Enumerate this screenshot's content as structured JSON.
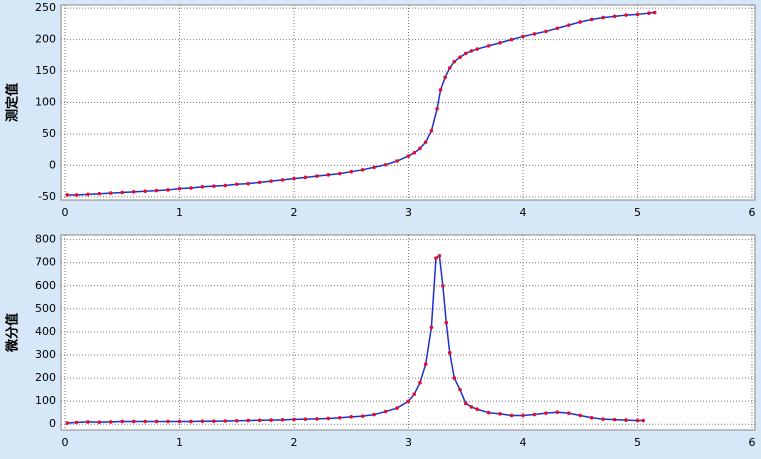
{
  "chart_data": [
    {
      "type": "line",
      "ylabel": "测定值",
      "color": "#1f2fd0",
      "marker_color": "#e0102a",
      "grid": true,
      "xlim": [
        0,
        6
      ],
      "xticks": [
        0,
        1,
        2,
        3,
        4,
        5,
        6
      ],
      "ylim": [
        -55,
        255
      ],
      "yticks": [
        -50,
        0,
        50,
        100,
        150,
        200,
        250
      ],
      "x": [
        0.02,
        0.1,
        0.2,
        0.3,
        0.4,
        0.5,
        0.6,
        0.7,
        0.8,
        0.9,
        1.0,
        1.1,
        1.2,
        1.3,
        1.4,
        1.5,
        1.6,
        1.7,
        1.8,
        1.9,
        2.0,
        2.1,
        2.2,
        2.3,
        2.4,
        2.5,
        2.6,
        2.7,
        2.8,
        2.9,
        3.0,
        3.05,
        3.1,
        3.15,
        3.2,
        3.25,
        3.28,
        3.32,
        3.36,
        3.4,
        3.45,
        3.5,
        3.55,
        3.6,
        3.7,
        3.8,
        3.9,
        4.0,
        4.1,
        4.2,
        4.3,
        4.4,
        4.5,
        4.6,
        4.7,
        4.8,
        4.9,
        5.0,
        5.1,
        5.15
      ],
      "values": [
        -47,
        -47,
        -46,
        -45,
        -44,
        -43,
        -42,
        -41,
        -40,
        -39,
        -37,
        -36,
        -34,
        -33,
        -32,
        -30,
        -29,
        -27,
        -25,
        -23,
        -21,
        -19,
        -17,
        -15,
        -13,
        -10,
        -7,
        -3,
        1,
        7,
        15,
        20,
        27,
        37,
        55,
        90,
        120,
        140,
        155,
        165,
        172,
        178,
        182,
        185,
        190,
        195,
        200,
        205,
        209,
        213,
        218,
        223,
        228,
        232,
        235,
        237,
        239,
        240,
        242,
        243
      ]
    },
    {
      "type": "line",
      "ylabel": "微分值",
      "color": "#1f2fd0",
      "marker_color": "#e0102a",
      "grid": true,
      "xlim": [
        0,
        6
      ],
      "xticks": [
        0,
        1,
        2,
        3,
        4,
        5,
        6
      ],
      "ylim": [
        -25,
        820
      ],
      "yticks": [
        0,
        100,
        200,
        300,
        400,
        500,
        600,
        700,
        800
      ],
      "x": [
        0.02,
        0.1,
        0.2,
        0.3,
        0.4,
        0.5,
        0.6,
        0.7,
        0.8,
        0.9,
        1.0,
        1.1,
        1.2,
        1.3,
        1.4,
        1.5,
        1.6,
        1.7,
        1.8,
        1.9,
        2.0,
        2.1,
        2.2,
        2.3,
        2.4,
        2.5,
        2.6,
        2.7,
        2.8,
        2.9,
        3.0,
        3.05,
        3.1,
        3.15,
        3.2,
        3.24,
        3.27,
        3.3,
        3.33,
        3.36,
        3.4,
        3.45,
        3.5,
        3.55,
        3.6,
        3.7,
        3.8,
        3.9,
        4.0,
        4.1,
        4.2,
        4.3,
        4.4,
        4.5,
        4.6,
        4.7,
        4.8,
        4.9,
        5.0,
        5.05
      ],
      "values": [
        5,
        8,
        10,
        9,
        10,
        12,
        12,
        12,
        12,
        12,
        12,
        12,
        13,
        13,
        14,
        15,
        16,
        17,
        18,
        19,
        21,
        22,
        23,
        25,
        28,
        32,
        35,
        42,
        55,
        70,
        100,
        130,
        180,
        260,
        420,
        720,
        730,
        600,
        440,
        310,
        200,
        150,
        90,
        75,
        65,
        50,
        45,
        38,
        38,
        42,
        48,
        52,
        48,
        38,
        28,
        22,
        20,
        18,
        16,
        16
      ]
    }
  ]
}
